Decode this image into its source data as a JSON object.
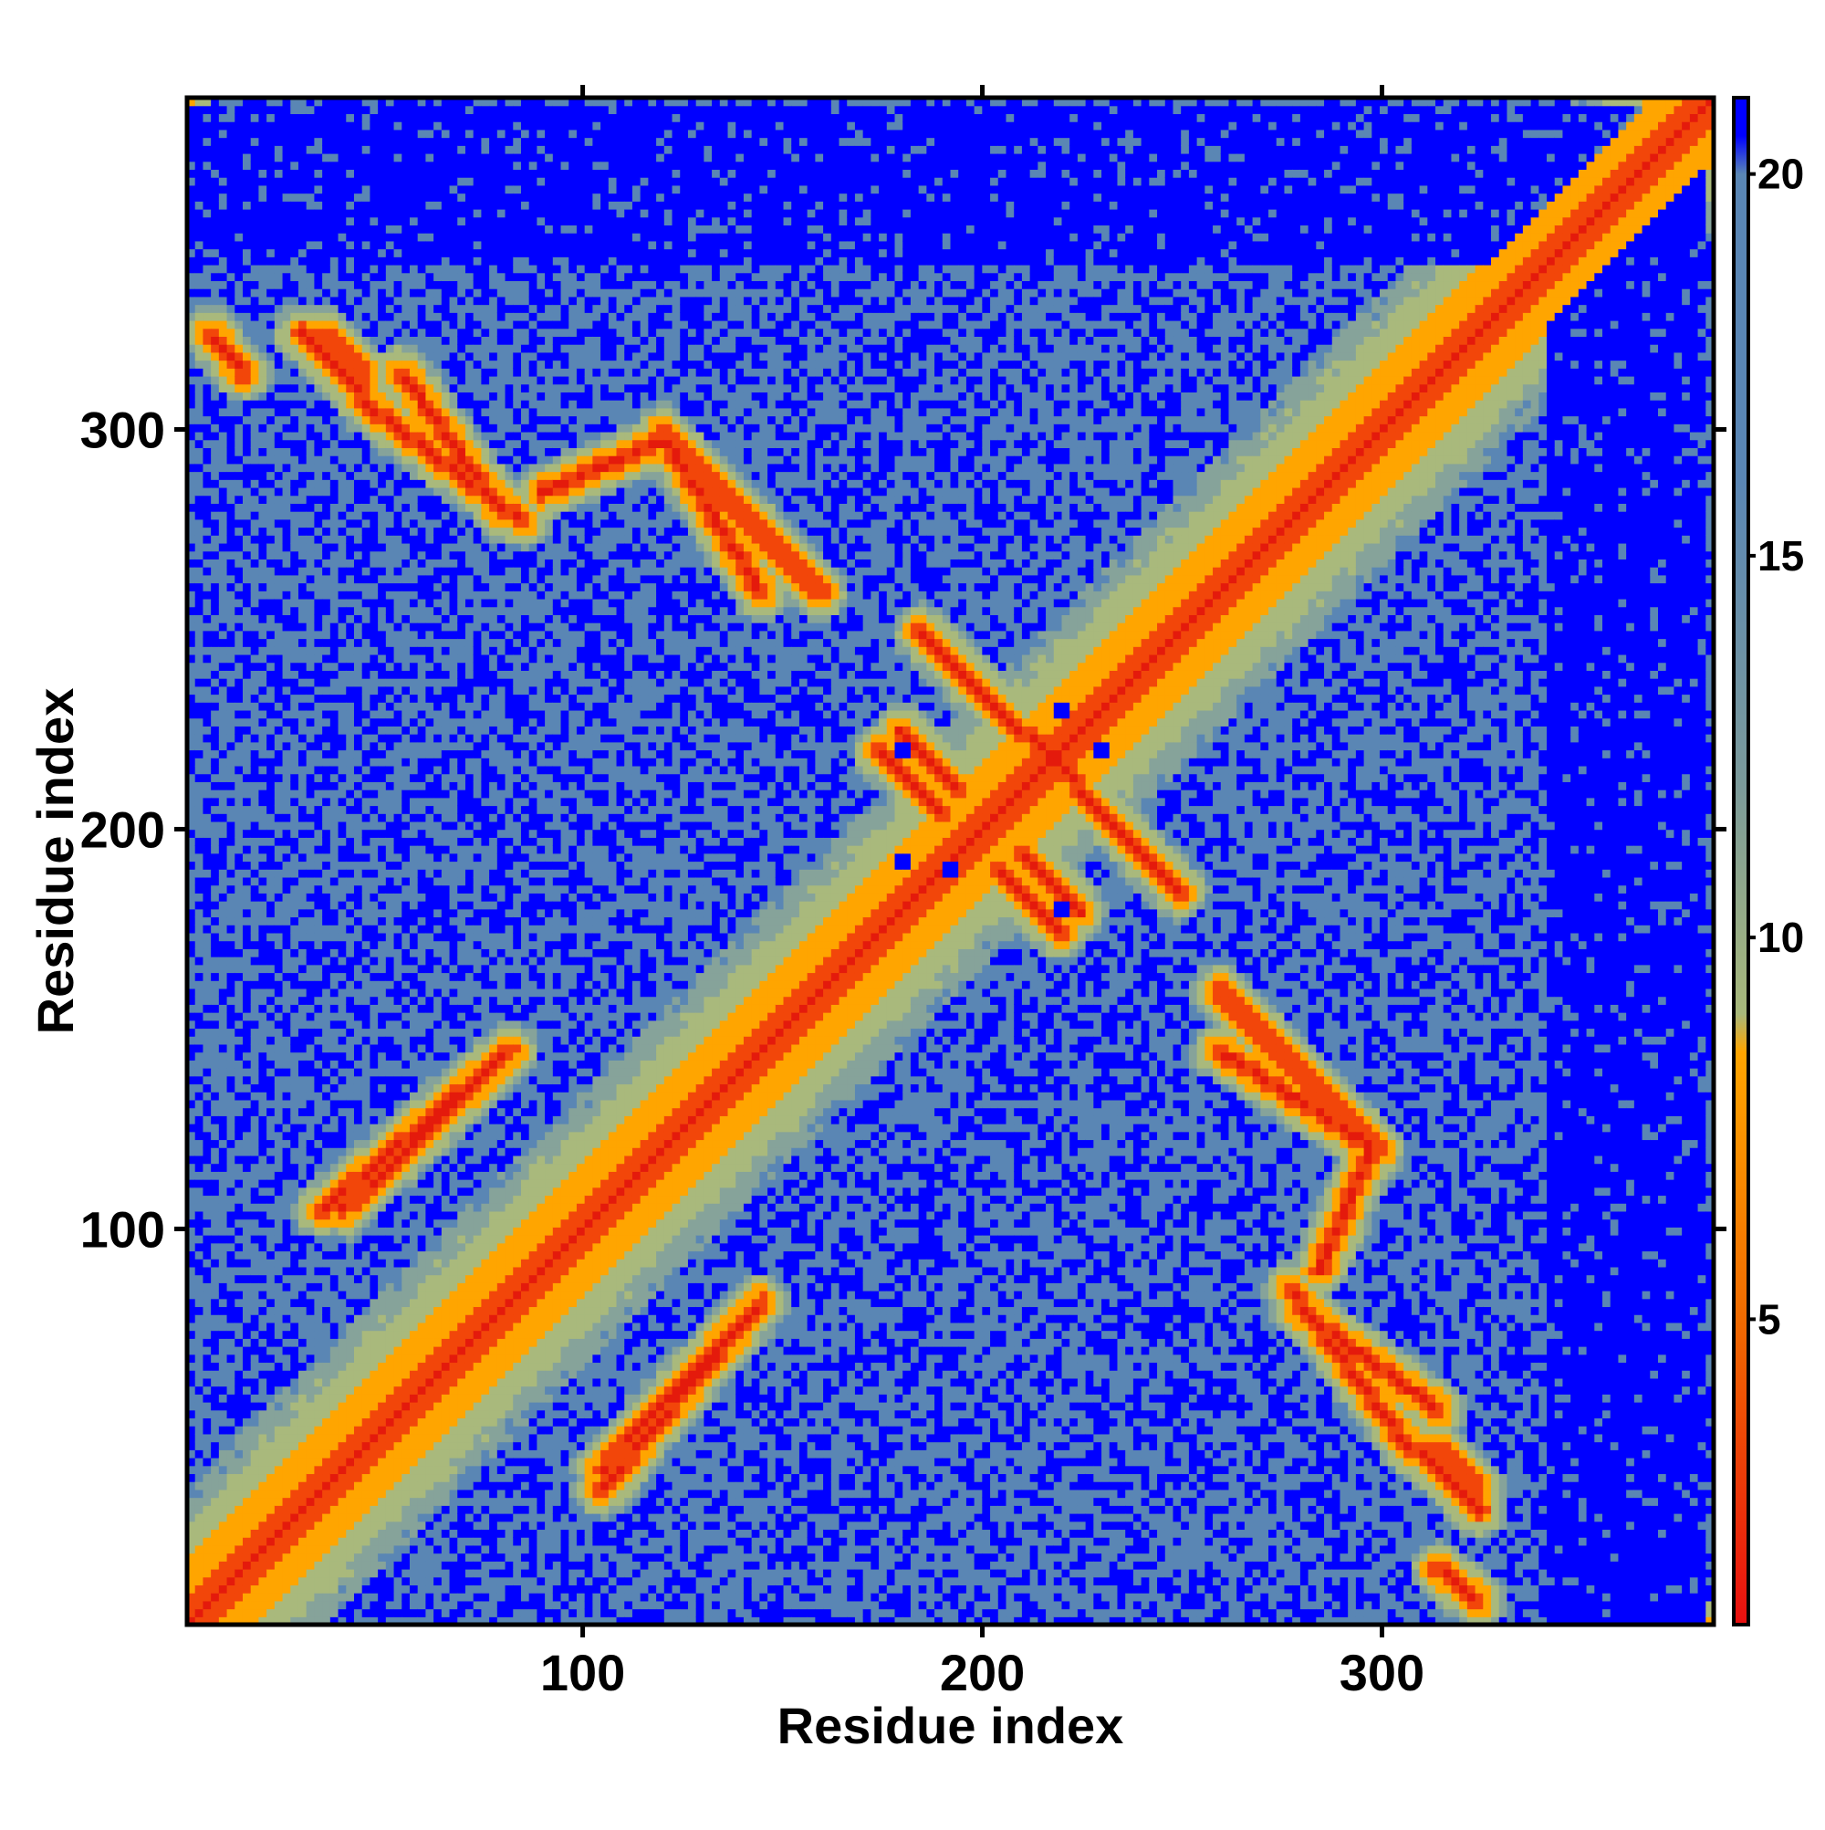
{
  "chart_data": {
    "type": "heatmap",
    "title": "",
    "xlabel": "Residue index",
    "ylabel": "Residue index",
    "xlim": [
      1,
      383
    ],
    "ylim": [
      1,
      383
    ],
    "n_residues": 383,
    "x_ticks": [
      100,
      200,
      300
    ],
    "y_ticks": [
      100,
      200,
      300
    ],
    "x_tick_labels": [
      "100",
      "200",
      "300"
    ],
    "y_tick_labels": [
      "100",
      "200",
      "300"
    ],
    "colorbar": {
      "range": [
        1,
        21
      ],
      "ticks": [
        5,
        10,
        15,
        20
      ],
      "tick_labels": [
        "5",
        "10",
        "15",
        "20"
      ],
      "stops": [
        {
          "value": 1,
          "color": "#e81010"
        },
        {
          "value": 5,
          "color": "#f06a00"
        },
        {
          "value": 8.5,
          "color": "#ffa500"
        },
        {
          "value": 9,
          "color": "#a8b87a"
        },
        {
          "value": 12,
          "color": "#7b9a9a"
        },
        {
          "value": 16,
          "color": "#5a86b4"
        },
        {
          "value": 20,
          "color": "#5a86b4"
        },
        {
          "value": 20.5,
          "color": "#0000ff"
        }
      ]
    },
    "description_of_values": "Pairwise residue distance map (symmetric); diagonal = minimum distance",
    "contact_bands": [
      {
        "kind": "diagonal",
        "from": [
          1,
          1
        ],
        "to": [
          383,
          383
        ]
      },
      {
        "kind": "antidiagonal",
        "from": [
          7,
          325
        ],
        "to": [
          15,
          315
        ]
      },
      {
        "kind": "antidiagonal",
        "from": [
          30,
          325
        ],
        "to": [
          45,
          310
        ]
      },
      {
        "kind": "antidiagonal",
        "from": [
          45,
          308
        ],
        "to": [
          85,
          278
        ]
      },
      {
        "kind": "antidiagonal",
        "from": [
          120,
          300
        ],
        "to": [
          160,
          260
        ]
      },
      {
        "kind": "parallel",
        "from": [
          90,
          285
        ],
        "to": [
          120,
          298
        ]
      },
      {
        "kind": "antidiagonal",
        "from": [
          180,
          225
        ],
        "to": [
          195,
          210
        ]
      },
      {
        "kind": "antidiagonal",
        "from": [
          212,
          225
        ],
        "to": [
          225,
          212
        ]
      },
      {
        "kind": "antidiagonal",
        "from": [
          225,
          210
        ],
        "to": [
          250,
          185
        ]
      },
      {
        "kind": "antidiagonal",
        "from": [
          205,
          190
        ],
        "to": [
          220,
          175
        ]
      },
      {
        "kind": "antidiagonal",
        "from": [
          35,
          105
        ],
        "to": [
          82,
          145
        ]
      },
      {
        "kind": "antidiagonal",
        "from": [
          105,
          40
        ],
        "to": [
          145,
          82
        ]
      },
      {
        "kind": "antidiagonal",
        "from": [
          260,
          145
        ],
        "to": [
          300,
          120
        ]
      },
      {
        "kind": "antidiagonal",
        "from": [
          280,
          80
        ],
        "to": [
          315,
          55
        ]
      },
      {
        "kind": "antidiagonal",
        "from": [
          315,
          45
        ],
        "to": [
          325,
          35
        ]
      },
      {
        "kind": "antidiagonal",
        "from": [
          315,
          15
        ],
        "to": [
          325,
          7
        ]
      },
      {
        "kind": "antidiagonal",
        "from": [
          370,
          7
        ],
        "to": [
          380,
          1
        ]
      }
    ],
    "far_regions": [
      {
        "x": [
          1,
          383
        ],
        "y": [
          355,
          383
        ]
      },
      {
        "x": [
          342,
          383
        ],
        "y": [
          1,
          355
        ]
      },
      {
        "x": [
          1,
          8
        ],
        "y": [
          355,
          383
        ]
      }
    ],
    "closed_pockets": [
      {
        "center": [
          180,
          220
        ]
      },
      {
        "center": [
          192,
          190
        ]
      },
      {
        "center": [
          220,
          230
        ]
      },
      {
        "center": [
          230,
          220
        ]
      },
      {
        "center": [
          180,
          192
        ]
      },
      {
        "center": [
          220,
          180
        ]
      }
    ]
  }
}
